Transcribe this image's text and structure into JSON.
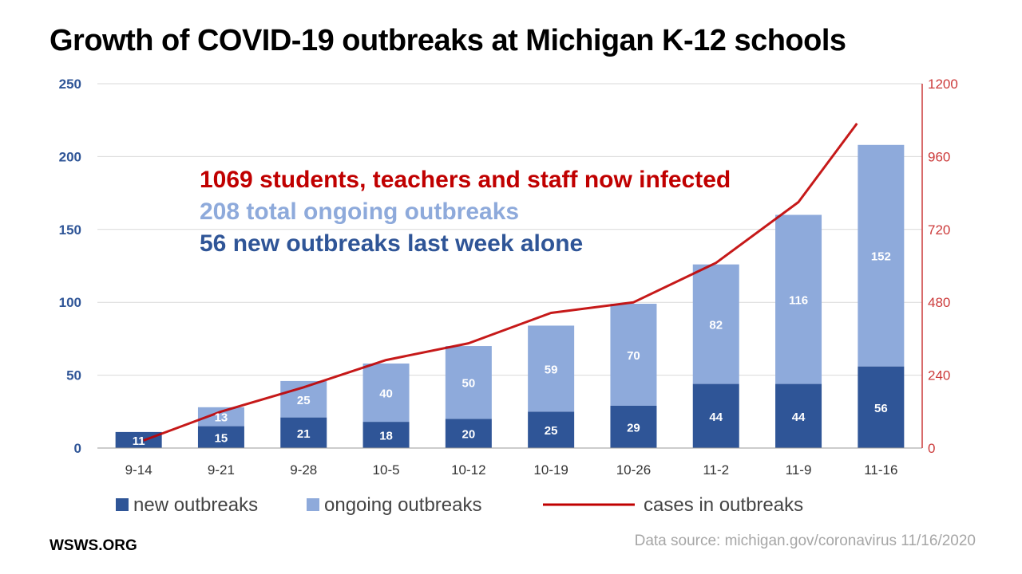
{
  "chart_data": {
    "type": "bar",
    "title": "Growth of COVID-19 outbreaks at Michigan K-12 schools",
    "categories": [
      "9-14",
      "9-21",
      "9-28",
      "10-5",
      "10-12",
      "10-19",
      "10-26",
      "11-2",
      "11-9",
      "11-16"
    ],
    "series": [
      {
        "name": "new outbreaks",
        "type": "bar",
        "stack": "total",
        "axis": "left",
        "color": "#2f5597",
        "values": [
          11,
          15,
          21,
          18,
          20,
          25,
          29,
          44,
          44,
          56
        ]
      },
      {
        "name": "ongoing outbreaks",
        "type": "bar",
        "stack": "total",
        "axis": "left",
        "color": "#8eaadb",
        "values": [
          0,
          13,
          25,
          40,
          50,
          59,
          70,
          82,
          116,
          152
        ]
      },
      {
        "name": "cases in outbreaks",
        "type": "line",
        "axis": "right",
        "color": "#c00000",
        "values": [
          25,
          120,
          200,
          290,
          345,
          445,
          480,
          610,
          810,
          1069
        ]
      }
    ],
    "bar_labels": {
      "new outbreaks": [
        "11",
        "15",
        "21",
        "18",
        "20",
        "25",
        "29",
        "44",
        "44",
        "56"
      ],
      "ongoing outbreaks": [
        "",
        "13",
        "25",
        "40",
        "50",
        "59",
        "70",
        "82",
        "116",
        "152"
      ]
    },
    "y_left": {
      "lim": [
        0,
        250
      ],
      "ticks": [
        0,
        50,
        100,
        150,
        200,
        250
      ]
    },
    "y_right": {
      "lim": [
        0,
        1200
      ],
      "ticks": [
        0,
        240,
        480,
        720,
        960,
        1200
      ]
    },
    "grid": true,
    "legend_position": "bottom",
    "annotations": [
      {
        "number": "1069",
        "text": " students, teachers and staff now infected",
        "color": "#c00000"
      },
      {
        "number": "208",
        "text": " total ongoing outbreaks",
        "color": "#8eaadb"
      },
      {
        "number": "56",
        "text": " new outbreaks last week alone",
        "color": "#2f5597"
      }
    ]
  },
  "footer": {
    "brand": "WSWS.ORG",
    "source": "Data source: michigan.gov/coronavirus 11/16/2020"
  }
}
